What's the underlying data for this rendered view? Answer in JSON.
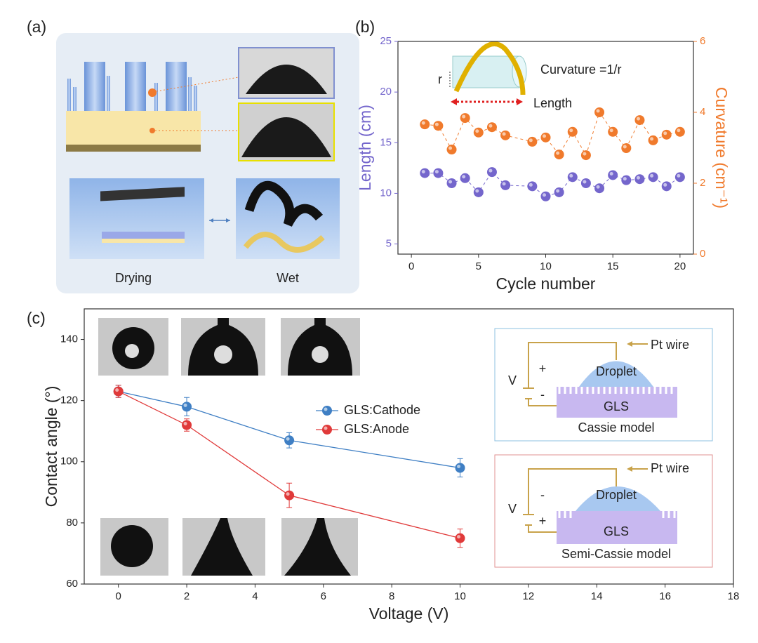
{
  "panel_labels": [
    "(a)",
    "(b)",
    "(c)"
  ],
  "panel_a": {
    "labels": [
      "Drying",
      "Wet"
    ]
  },
  "chart_data": [
    {
      "type": "scatter",
      "xlabel": "Cycle number",
      "ylabel": "Length (cm)",
      "y2label": "Curvature (cm⁻¹)",
      "annotations": [
        "Curvature =1/r",
        "r",
        "Length"
      ],
      "x": [
        1,
        2,
        3,
        4,
        5,
        6,
        7,
        9,
        10,
        11,
        12,
        13,
        14,
        15,
        16,
        17,
        18,
        19,
        20
      ],
      "xlim": [
        -1,
        21
      ],
      "xticks": [
        0,
        5,
        10,
        15,
        20
      ],
      "ylim": [
        4,
        25
      ],
      "yticks": [
        5,
        10,
        15,
        20,
        25
      ],
      "y2lim": [
        0,
        6
      ],
      "y2ticks": [
        0,
        2,
        4,
        6
      ],
      "series": [
        {
          "color": "#7466cc",
          "values": [
            12.0,
            12.0,
            11.0,
            11.5,
            10.1,
            12.1,
            10.8,
            10.7,
            9.7,
            10.1,
            11.6,
            11.0,
            10.5,
            11.8,
            11.3,
            11.4,
            11.6,
            10.7,
            11.6
          ]
        },
        {
          "color": "#f07a2c",
          "axis": "y2",
          "values": [
            3.66,
            3.62,
            2.95,
            3.84,
            3.43,
            3.58,
            3.35,
            3.17,
            3.29,
            2.81,
            3.45,
            2.79,
            4.0,
            3.45,
            2.99,
            3.78,
            3.21,
            3.37,
            3.45
          ]
        }
      ]
    },
    {
      "type": "line",
      "xlabel": "Voltage (V)",
      "ylabel": "Contact angle (°)",
      "x": [
        0,
        2,
        5,
        10
      ],
      "xlim": [
        -1,
        18
      ],
      "xticks": [
        0,
        2,
        4,
        6,
        8,
        10,
        12,
        14,
        16,
        18
      ],
      "ylim": [
        60,
        150
      ],
      "yticks": [
        60,
        80,
        100,
        120,
        140
      ],
      "series": [
        {
          "name": "GLS:Cathode",
          "color": "#3f7fc4",
          "values": [
            123,
            118,
            107,
            98
          ],
          "errors": [
            2,
            3,
            2.5,
            3
          ]
        },
        {
          "name": "GLS:Anode",
          "color": "#e03a3a",
          "values": [
            123,
            112,
            89,
            75
          ],
          "errors": [
            2,
            2,
            4,
            3
          ]
        }
      ]
    }
  ],
  "diagrams": [
    {
      "wire": "Pt wire",
      "droplet": "Droplet",
      "substrate": "GLS",
      "model": "Cassie model",
      "source": "V",
      "top_sign": "+",
      "bottom_sign": "-"
    },
    {
      "wire": "Pt wire",
      "droplet": "Droplet",
      "substrate": "GLS",
      "model": "Semi-Cassie model",
      "source": "V",
      "top_sign": "-",
      "bottom_sign": "+"
    }
  ]
}
